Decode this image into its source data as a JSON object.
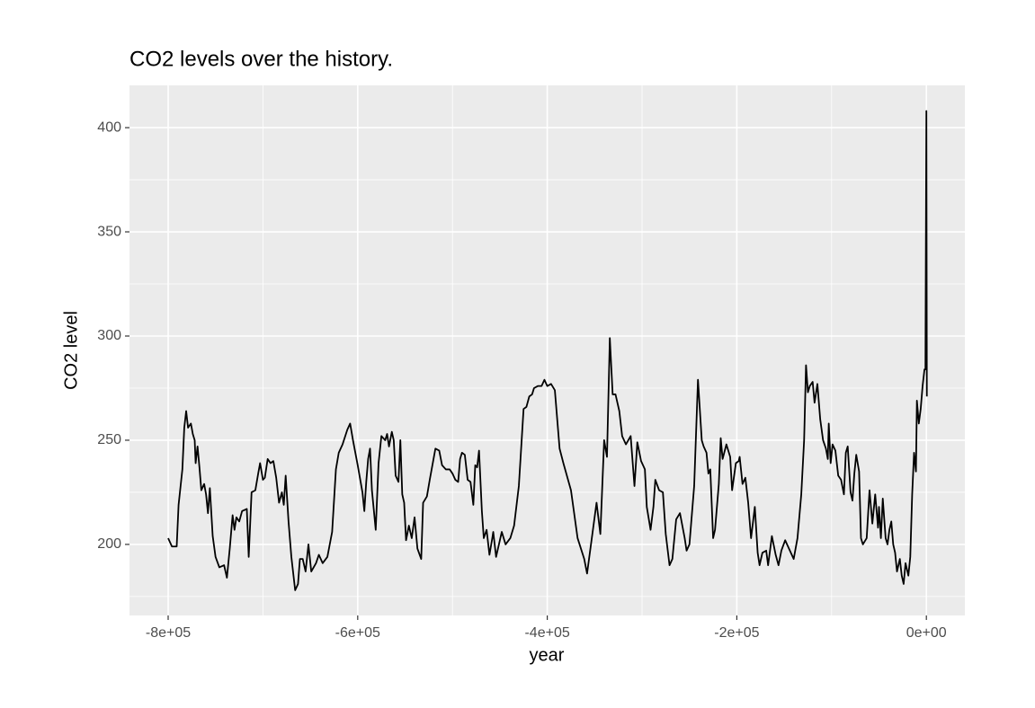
{
  "chart_data": {
    "type": "line",
    "title": "CO2 levels over the history.",
    "xlabel": "year",
    "ylabel": "CO2 level",
    "color": "#000000",
    "background": "#ebebeb",
    "grid": true,
    "xlim": [
      -840800,
      40600
    ],
    "ylim": [
      165.9,
      420.3
    ],
    "xticks": [
      {
        "value": -800000,
        "label": "-8e+05"
      },
      {
        "value": -600000,
        "label": "-6e+05"
      },
      {
        "value": -400000,
        "label": "-4e+05"
      },
      {
        "value": -200000,
        "label": "-2e+05"
      },
      {
        "value": 0,
        "label": "0e+00"
      }
    ],
    "yticks": [
      200,
      250,
      300,
      350,
      400
    ],
    "x_minor_grid": [
      -700000,
      -500000,
      -300000,
      -100000
    ],
    "y_minor_grid": [
      175,
      225,
      275,
      325,
      375
    ],
    "x": [
      -800000,
      -796000,
      -791000,
      -789000,
      -785000,
      -783000,
      -781000,
      -779000,
      -776000,
      -774000,
      -772000,
      -771000,
      -769000,
      -767000,
      -765000,
      -762000,
      -760000,
      -758000,
      -756000,
      -753000,
      -750000,
      -746000,
      -741000,
      -738000,
      -735000,
      -732000,
      -730000,
      -728000,
      -725000,
      -722000,
      -717000,
      -715000,
      -712000,
      -708000,
      -705000,
      -703000,
      -700000,
      -698000,
      -695000,
      -692000,
      -689000,
      -686000,
      -683000,
      -680000,
      -678000,
      -676000,
      -673000,
      -670000,
      -666000,
      -663000,
      -661000,
      -658000,
      -655000,
      -652000,
      -649000,
      -644000,
      -641000,
      -637000,
      -632000,
      -627000,
      -623000,
      -620000,
      -616000,
      -611000,
      -608000,
      -605000,
      -600000,
      -595000,
      -593000,
      -591000,
      -589000,
      -587000,
      -585000,
      -581000,
      -578000,
      -575000,
      -571000,
      -569000,
      -567000,
      -564000,
      -562000,
      -560000,
      -557000,
      -555000,
      -553000,
      -551000,
      -549000,
      -546000,
      -543000,
      -540000,
      -537000,
      -533000,
      -531000,
      -527000,
      -524000,
      -518000,
      -514000,
      -511000,
      -507000,
      -503000,
      -500000,
      -497000,
      -494000,
      -492000,
      -490000,
      -487000,
      -484000,
      -481000,
      -478000,
      -476000,
      -474000,
      -472000,
      -469000,
      -467000,
      -464000,
      -461000,
      -458000,
      -457000,
      -454000,
      -451000,
      -448000,
      -444000,
      -439000,
      -435000,
      -430000,
      -425000,
      -422000,
      -419000,
      -416000,
      -414000,
      -410000,
      -406000,
      -403000,
      -400000,
      -396000,
      -392000,
      -387000,
      -383000,
      -375000,
      -368000,
      -361000,
      -358000,
      -353000,
      -348000,
      -344000,
      -340000,
      -337000,
      -334000,
      -331000,
      -328000,
      -324000,
      -321000,
      -317000,
      -312000,
      -308000,
      -305000,
      -301000,
      -297000,
      -295000,
      -291000,
      -288000,
      -286000,
      -282000,
      -278000,
      -275000,
      -271000,
      -268000,
      -264000,
      -260000,
      -255000,
      -253000,
      -250000,
      -245000,
      -241000,
      -237000,
      -235000,
      -232000,
      -230000,
      -228000,
      -225000,
      -223000,
      -219000,
      -217000,
      -215000,
      -211000,
      -207000,
      -205000,
      -201000,
      -198000,
      -197000,
      -194000,
      -191000,
      -188000,
      -185000,
      -181000,
      -178000,
      -176000,
      -173000,
      -169000,
      -167000,
      -163000,
      -159000,
      -156000,
      -153000,
      -149000,
      -144000,
      -140000,
      -136000,
      -132000,
      -129000,
      -127000,
      -125000,
      -123000,
      -120000,
      -118000,
      -115000,
      -112000,
      -109000,
      -106000,
      -104000,
      -103000,
      -101000,
      -99000,
      -96000,
      -93000,
      -90000,
      -87000,
      -85000,
      -83000,
      -80000,
      -78000,
      -76000,
      -74000,
      -71000,
      -69000,
      -67000,
      -63000,
      -60000,
      -57000,
      -54000,
      -51000,
      -50000,
      -48000,
      -46000,
      -43000,
      -41000,
      -39000,
      -37000,
      -35000,
      -33000,
      -31000,
      -28000,
      -26000,
      -24000,
      -22000,
      -19000,
      -17000,
      -15000,
      -13000,
      -11000,
      -10000,
      -8000,
      -6000,
      -4000,
      -2000,
      -1000,
      0,
      500
    ],
    "values": [
      203,
      199,
      199,
      219,
      236,
      256,
      264,
      256,
      258,
      253,
      250,
      239,
      247,
      237,
      226,
      229,
      224,
      215,
      227,
      204,
      194,
      189,
      190,
      184,
      198,
      214,
      207,
      213,
      211,
      216,
      217,
      194,
      225,
      226,
      234,
      239,
      231,
      232,
      241,
      239,
      240,
      232,
      220,
      225,
      219,
      233,
      211,
      194,
      178,
      181,
      193,
      193,
      187,
      200,
      187,
      191,
      195,
      191,
      194,
      206,
      236,
      244,
      248,
      255,
      258,
      250,
      238,
      225,
      216,
      230,
      241,
      246,
      226,
      207,
      239,
      252,
      250,
      253,
      247,
      254,
      250,
      233,
      230,
      250,
      224,
      220,
      202,
      209,
      203,
      213,
      198,
      193,
      220,
      223,
      231,
      246,
      245,
      238,
      236,
      236,
      234,
      231,
      230,
      241,
      244,
      243,
      231,
      230,
      219,
      238,
      237,
      245,
      216,
      203,
      207,
      195,
      203,
      206,
      194,
      200,
      206,
      200,
      203,
      209,
      228,
      265,
      266,
      271,
      272,
      275,
      276,
      276,
      279,
      276,
      277,
      274,
      246,
      239,
      226,
      203,
      193,
      186,
      203,
      220,
      205,
      250,
      242,
      299,
      272,
      272,
      264,
      252,
      248,
      252,
      228,
      249,
      240,
      236,
      218,
      207,
      218,
      231,
      226,
      225,
      205,
      190,
      193,
      212,
      215,
      203,
      197,
      200,
      228,
      279,
      250,
      247,
      244,
      234,
      236,
      203,
      207,
      229,
      251,
      241,
      248,
      242,
      226,
      239,
      240,
      242,
      229,
      232,
      220,
      203,
      218,
      196,
      190,
      196,
      197,
      190,
      204,
      195,
      190,
      197,
      202,
      197,
      193,
      203,
      224,
      250,
      286,
      273,
      276,
      278,
      268,
      277,
      260,
      250,
      246,
      241,
      258,
      239,
      248,
      245,
      233,
      231,
      224,
      244,
      247,
      225,
      221,
      234,
      243,
      235,
      203,
      200,
      203,
      226,
      210,
      224,
      208,
      218,
      203,
      222,
      203,
      200,
      207,
      211,
      200,
      196,
      187,
      193,
      185,
      181,
      191,
      185,
      194,
      224,
      244,
      235,
      269,
      258,
      265,
      276,
      284,
      284,
      408,
      271
    ]
  }
}
